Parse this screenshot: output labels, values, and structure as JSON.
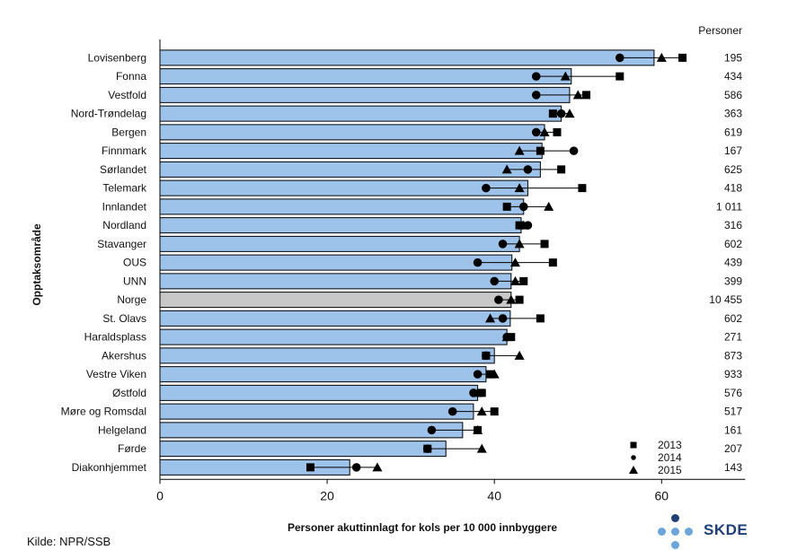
{
  "chart_data": {
    "type": "bar",
    "ylabel": "Opptaksområde",
    "xlabel": "Personer akuttinnlagt for kols per 10 000 innbyggere",
    "xlim": [
      0,
      70
    ],
    "xticks": [
      0,
      20,
      40,
      60
    ],
    "count_header": "Personer",
    "highlight_category": "Norge",
    "colors": {
      "bar": "#9ec3ea",
      "bar_highlight": "#c8c8c8",
      "marker": "#000000"
    },
    "legend": {
      "placement": "bottom-right",
      "entries": [
        {
          "label": "2013",
          "marker": "square"
        },
        {
          "label": "2014",
          "marker": "circle"
        },
        {
          "label": "2015",
          "marker": "triangle"
        }
      ]
    },
    "categories": [
      "Lovisenberg",
      "Fonna",
      "Vestfold",
      "Nord-Trøndelag",
      "Bergen",
      "Finnmark",
      "Sørlandet",
      "Telemark",
      "Innlandet",
      "Nordland",
      "Stavanger",
      "OUS",
      "UNN",
      "Norge",
      "St. Olavs",
      "Haraldsplass",
      "Akershus",
      "Vestre Viken",
      "Østfold",
      "Møre og Romsdal",
      "Helgeland",
      "Førde",
      "Diakonhjemmet"
    ],
    "values": [
      59.1,
      49.2,
      49.0,
      48.0,
      46.0,
      45.7,
      45.5,
      44.0,
      43.5,
      43.2,
      43.0,
      42.1,
      42.0,
      42.0,
      41.9,
      41.5,
      40.0,
      39.0,
      38.0,
      37.5,
      36.2,
      34.2,
      22.7
    ],
    "series": [
      {
        "name": "2013",
        "values": [
          62.5,
          55.0,
          51.0,
          47.0,
          47.5,
          45.5,
          48.0,
          50.5,
          41.5,
          43.0,
          46.0,
          47.0,
          43.5,
          43.0,
          45.5,
          42.0,
          39.0,
          39.5,
          38.5,
          40.0,
          38.0,
          32.0,
          18.0
        ]
      },
      {
        "name": "2014",
        "values": [
          55.0,
          45.0,
          45.0,
          48.0,
          45.0,
          49.5,
          44.0,
          39.0,
          43.5,
          44.0,
          41.0,
          38.0,
          40.0,
          40.5,
          41.0,
          41.5,
          39.0,
          38.0,
          37.5,
          35.0,
          32.5,
          32.0,
          23.5
        ]
      },
      {
        "name": "2015",
        "values": [
          60.0,
          48.5,
          50.0,
          49.0,
          46.0,
          43.0,
          41.5,
          43.0,
          46.5,
          43.5,
          43.0,
          42.5,
          42.5,
          42.0,
          39.5,
          41.5,
          43.0,
          40.0,
          38.0,
          38.5,
          38.0,
          38.5,
          26.0
        ]
      }
    ],
    "counts": [
      "195",
      "434",
      "586",
      "363",
      "619",
      "167",
      "625",
      "418",
      "1 011",
      "316",
      "602",
      "439",
      "399",
      "10 455",
      "602",
      "271",
      "873",
      "933",
      "576",
      "517",
      "161",
      "207",
      "143"
    ]
  },
  "source_text": "Kilde: NPR/SSB",
  "logo_text": "SKDE"
}
